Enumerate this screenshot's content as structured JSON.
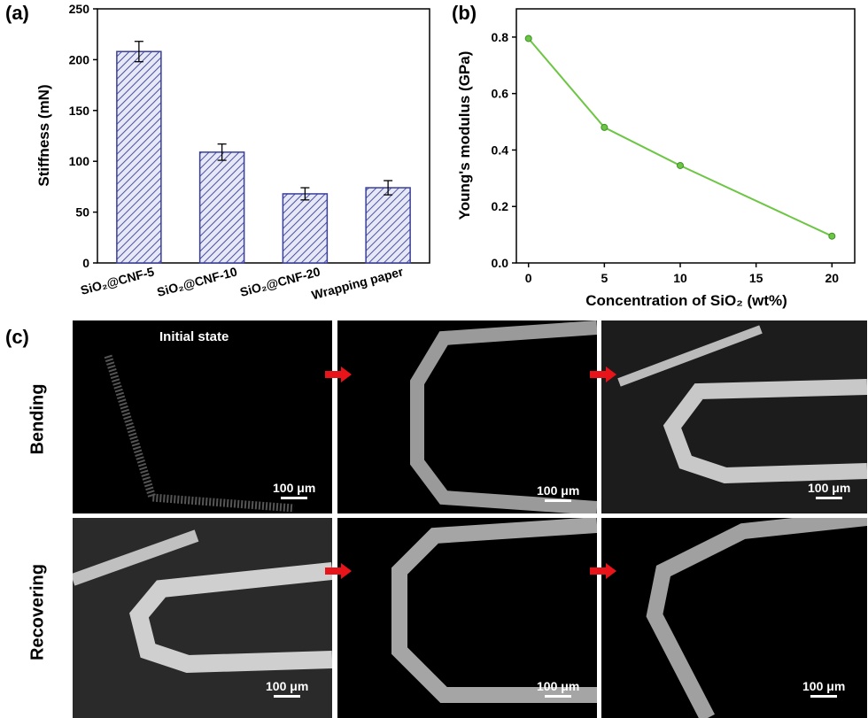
{
  "panels": {
    "a_label": "(a)",
    "b_label": "(b)",
    "c_label": "(c)"
  },
  "chart_data": [
    {
      "type": "bar",
      "panel": "(a)",
      "ylabel": "Stiffness (mN)",
      "xlabel": "",
      "ylim": [
        0,
        250
      ],
      "yticks": [
        "0",
        "50",
        "100",
        "150",
        "200",
        "250"
      ],
      "categories": [
        "SiO₂@CNF-5",
        "SiO₂@CNF-10",
        "SiO₂@CNF-20",
        "Wrapping paper"
      ],
      "values": [
        208,
        109,
        68,
        74
      ],
      "errors": [
        10,
        8,
        6,
        7
      ],
      "bar_color": "#3a3f9a",
      "legend": "none",
      "grid": false
    },
    {
      "type": "line",
      "panel": "(b)",
      "ylabel": "Young's modulus (GPa)",
      "xlabel": "Concentration of SiO₂ (wt%)",
      "xlim": [
        -0.8,
        21.5
      ],
      "ylim": [
        0,
        0.9
      ],
      "xticks": [
        "0",
        "5",
        "10",
        "15",
        "20"
      ],
      "yticks": [
        "0.0",
        "0.2",
        "0.4",
        "0.6",
        "0.8"
      ],
      "x": [
        0,
        5,
        10,
        20
      ],
      "y": [
        0.795,
        0.48,
        0.345,
        0.095
      ],
      "line_color": "#6cc644",
      "legend": "none",
      "grid": false
    }
  ],
  "sem": {
    "row_labels": [
      "Bending",
      "Recovering"
    ],
    "initial_state": "Initial state",
    "scale_bar_label": "100 μm",
    "arrow_color": "#e8141a"
  }
}
